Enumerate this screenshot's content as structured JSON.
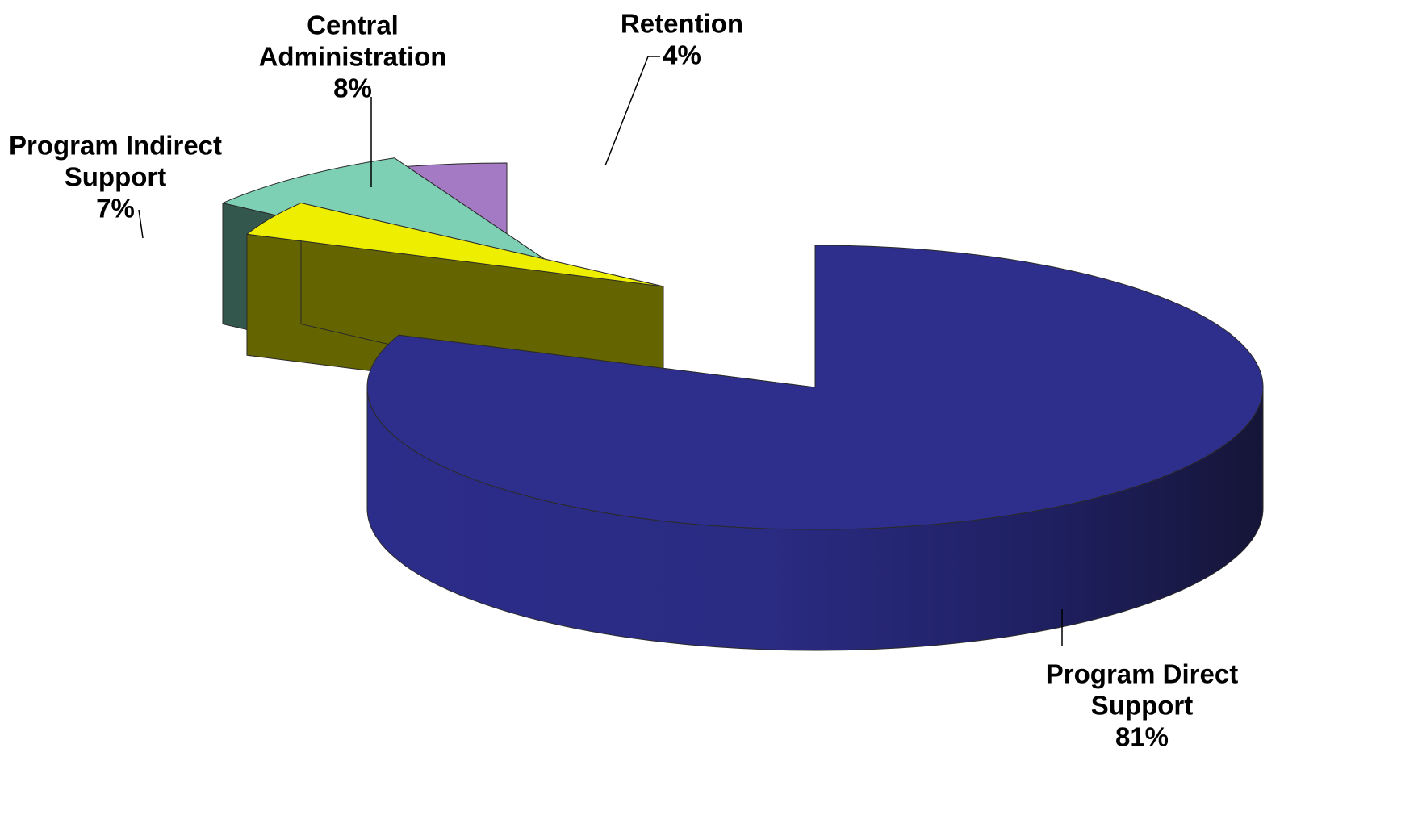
{
  "chart_data": {
    "type": "pie",
    "style": "3d-exploded",
    "categories": [
      "Program Direct Support",
      "Retention",
      "Central Administration",
      "Program Indirect Support"
    ],
    "values": [
      81,
      4,
      8,
      7
    ],
    "unit": "%",
    "labels": [
      {
        "lines": [
          "Program Direct",
          "Support"
        ],
        "value": "81%"
      },
      {
        "lines": [
          "Retention"
        ],
        "value": "4%"
      },
      {
        "lines": [
          "Central",
          "Administration"
        ],
        "value": "8%"
      },
      {
        "lines": [
          "Program Indirect",
          "Support"
        ],
        "value": "7%"
      }
    ],
    "colors": {
      "top": [
        "#2e2f8c",
        "#eeee00",
        "#7dd0b4",
        "#a57ac4"
      ],
      "side": [
        "#23246e",
        "#646400",
        "#33574d",
        "#463450"
      ],
      "side_dark": "#151538"
    },
    "legend": "none"
  }
}
